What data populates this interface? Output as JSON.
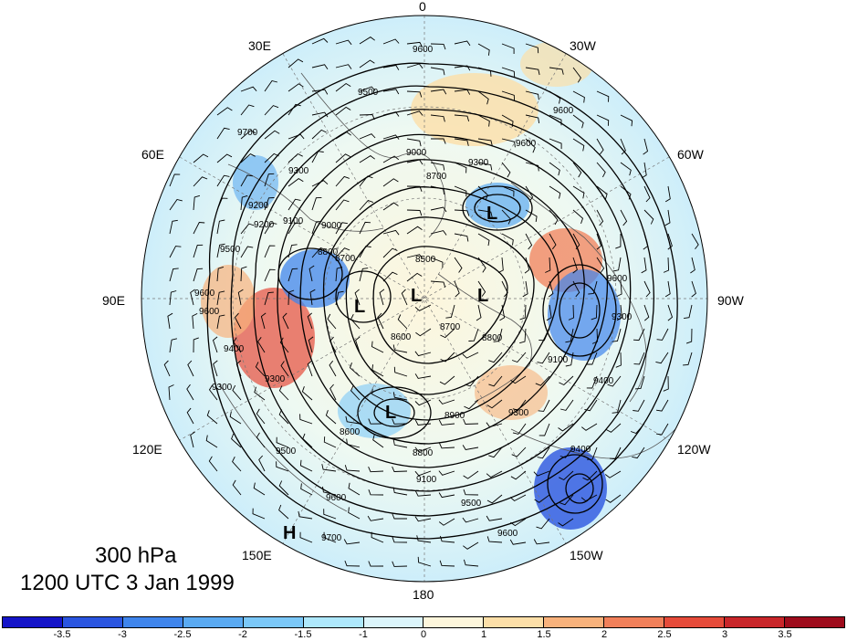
{
  "map": {
    "level": "300 hPa",
    "valid_time": "1200 UTC 3 Jan 1999",
    "longitude_labels": [
      {
        "text": "0",
        "lon": 0
      },
      {
        "text": "30W",
        "lon": -30
      },
      {
        "text": "60W",
        "lon": -60
      },
      {
        "text": "90W",
        "lon": -90
      },
      {
        "text": "120W",
        "lon": -120
      },
      {
        "text": "150W",
        "lon": -150
      },
      {
        "text": "180",
        "lon": 180
      },
      {
        "text": "150E",
        "lon": 150
      },
      {
        "text": "120E",
        "lon": 120
      },
      {
        "text": "90E",
        "lon": 90
      },
      {
        "text": "60E",
        "lon": 60
      },
      {
        "text": "30E",
        "lon": 30
      }
    ],
    "pressure_centers": [
      {
        "label": "L",
        "name": "low-center-north-atlantic"
      },
      {
        "label": "L",
        "name": "low-center-siberia"
      },
      {
        "label": "L",
        "name": "low-center-pole"
      },
      {
        "label": "L",
        "name": "low-center-arctic-canada"
      },
      {
        "label": "L",
        "name": "low-center-east-siberia"
      },
      {
        "label": "H",
        "name": "high-center-west-pacific"
      }
    ],
    "contour_labels": [
      "9600",
      "9500",
      "9600",
      "9300",
      "9000",
      "9300",
      "9700",
      "9600",
      "8700",
      "9100",
      "9000",
      "8800",
      "8500",
      "8700",
      "9500",
      "9200",
      "9600",
      "9400",
      "9300",
      "8600",
      "8700",
      "8800",
      "9600",
      "9100",
      "9300",
      "9400",
      "9500",
      "9600",
      "8600",
      "8900",
      "9300",
      "8800",
      "9100",
      "9400",
      "9500",
      "9600",
      "9700",
      "9600",
      "9300",
      "9200"
    ]
  },
  "colorbar": {
    "colors": [
      "#1414c8",
      "#2a55e0",
      "#3f85ec",
      "#5aaaf2",
      "#7bc8f8",
      "#aee8fc",
      "#dcf5fb",
      "#fdf6dc",
      "#fcdfa8",
      "#f8b27c",
      "#f1805a",
      "#e64b3a",
      "#c9262a",
      "#9e0c1c"
    ],
    "tick_labels": [
      "-3.5",
      "-3",
      "-2.5",
      "-2",
      "-1.5",
      "-1",
      "0",
      "1",
      "1.5",
      "2",
      "2.5",
      "3",
      "3.5"
    ]
  }
}
